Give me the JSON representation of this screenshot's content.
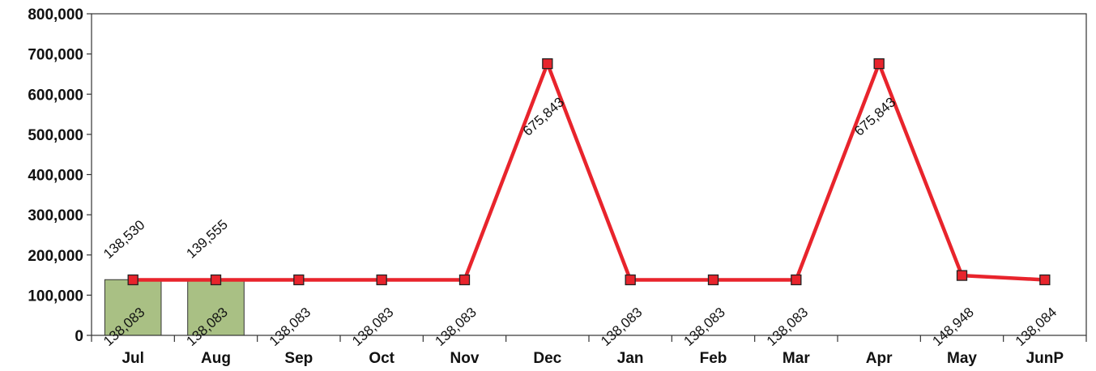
{
  "chart_data": {
    "type": "bar",
    "categories": [
      "Jul",
      "Aug",
      "Sep",
      "Oct",
      "Nov",
      "Dec",
      "Jan",
      "Feb",
      "Mar",
      "Apr",
      "May",
      "JunP"
    ],
    "series": [
      {
        "type": "bar",
        "values": [
          138530,
          139555,
          null,
          null,
          null,
          null,
          null,
          null,
          null,
          null,
          null,
          null
        ],
        "labels": [
          "138,530",
          "139,555",
          "",
          "",
          "",
          "",
          "",
          "",
          "",
          "",
          "",
          ""
        ],
        "color": "#a9c084"
      },
      {
        "type": "line",
        "values": [
          138083,
          138083,
          138083,
          138083,
          138083,
          675843,
          138083,
          138083,
          138083,
          675843,
          148948,
          138084
        ],
        "labels": [
          "138,083",
          "138,083",
          "138,083",
          "138,083",
          "138,083",
          "675,843",
          "138,083",
          "138,083",
          "138,083",
          "675,843",
          "148,948",
          "138,084"
        ],
        "color": "#e8242c"
      }
    ],
    "yticks": [
      "0",
      "100,000",
      "200,000",
      "300,000",
      "400,000",
      "500,000",
      "600,000",
      "700,000",
      "800,000"
    ],
    "ylim": [
      0,
      800000
    ],
    "grid": false,
    "legend": "none"
  }
}
